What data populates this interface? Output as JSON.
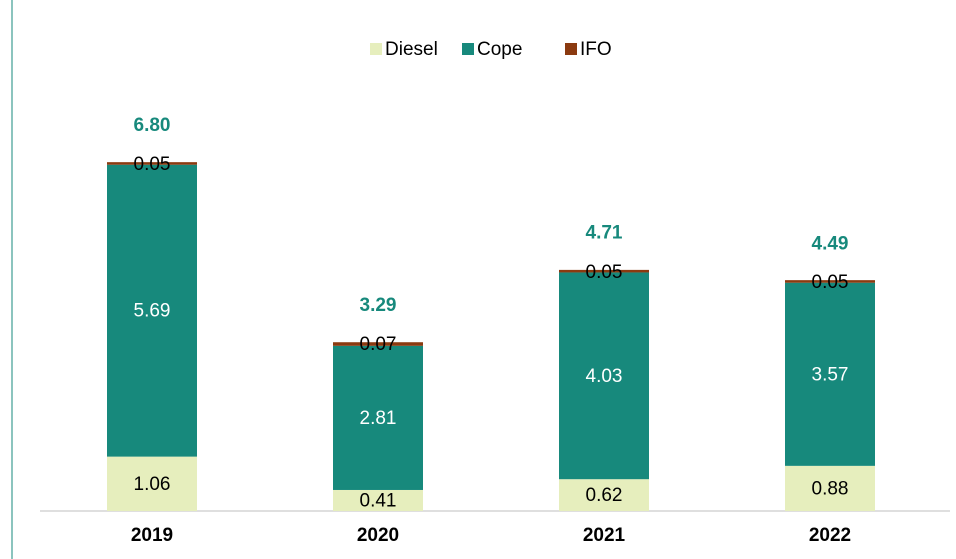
{
  "chart_data": {
    "type": "stacked_bar",
    "categories": [
      "2019",
      "2020",
      "2021",
      "2022"
    ],
    "series": [
      {
        "name": "Diesel",
        "color": "#e6eebd",
        "values": [
          1.06,
          0.41,
          0.62,
          0.88
        ]
      },
      {
        "name": "Cope",
        "color": "#17897c",
        "values": [
          5.69,
          2.81,
          4.03,
          3.57
        ]
      },
      {
        "name": "IFO",
        "color": "#8b3a10",
        "values": [
          0.05,
          0.07,
          0.05,
          0.05
        ]
      }
    ],
    "totals": [
      6.8,
      3.29,
      4.71,
      4.49
    ],
    "total_labels": [
      "6.80",
      "3.29",
      "4.71",
      "4.49"
    ],
    "total_color": "#17897c",
    "legend": "top"
  }
}
